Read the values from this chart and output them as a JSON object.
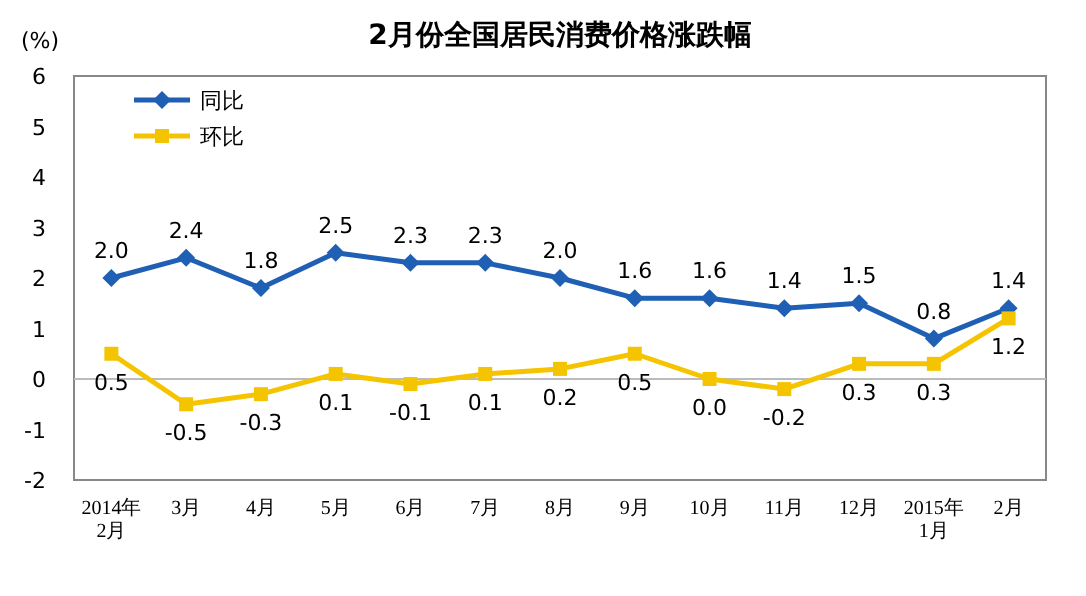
{
  "chart_data": {
    "type": "line",
    "title": "2月份全国居民消费价格涨跌幅",
    "ylabel": "(%)",
    "categories": [
      "2014年\n2月",
      "3月",
      "4月",
      "5月",
      "6月",
      "7月",
      "8月",
      "9月",
      "10月",
      "11月",
      "12月",
      "2015年\n1月",
      "2月"
    ],
    "series": [
      {
        "name": "同比",
        "color": "#1f5fb4",
        "marker": "diamond",
        "values": [
          2.0,
          2.4,
          1.8,
          2.5,
          2.3,
          2.3,
          2.0,
          1.6,
          1.6,
          1.4,
          1.5,
          0.8,
          1.4
        ],
        "value_labels": [
          "2.0",
          "2.4",
          "1.8",
          "2.5",
          "2.3",
          "2.3",
          "2.0",
          "1.6",
          "1.6",
          "1.4",
          "1.5",
          "0.8",
          "1.4"
        ]
      },
      {
        "name": "环比",
        "color": "#f5c400",
        "marker": "square",
        "values": [
          0.5,
          -0.5,
          -0.3,
          0.1,
          -0.1,
          0.1,
          0.2,
          0.5,
          0.0,
          -0.2,
          0.3,
          0.3,
          1.2
        ],
        "value_labels": [
          "0.5",
          "-0.5",
          "-0.3",
          "0.1",
          "-0.1",
          "0.1",
          "0.2",
          "0.5",
          "0.0",
          "-0.2",
          "0.3",
          "0.3",
          "1.2"
        ]
      }
    ],
    "ylim": [
      -2,
      6
    ],
    "yticks": [
      -2,
      -1,
      0,
      1,
      2,
      3,
      4,
      5,
      6
    ],
    "legend": "top left",
    "ref_lines": [
      {
        "axis": "y",
        "value": 0,
        "color": "#bbbbbb"
      }
    ]
  }
}
